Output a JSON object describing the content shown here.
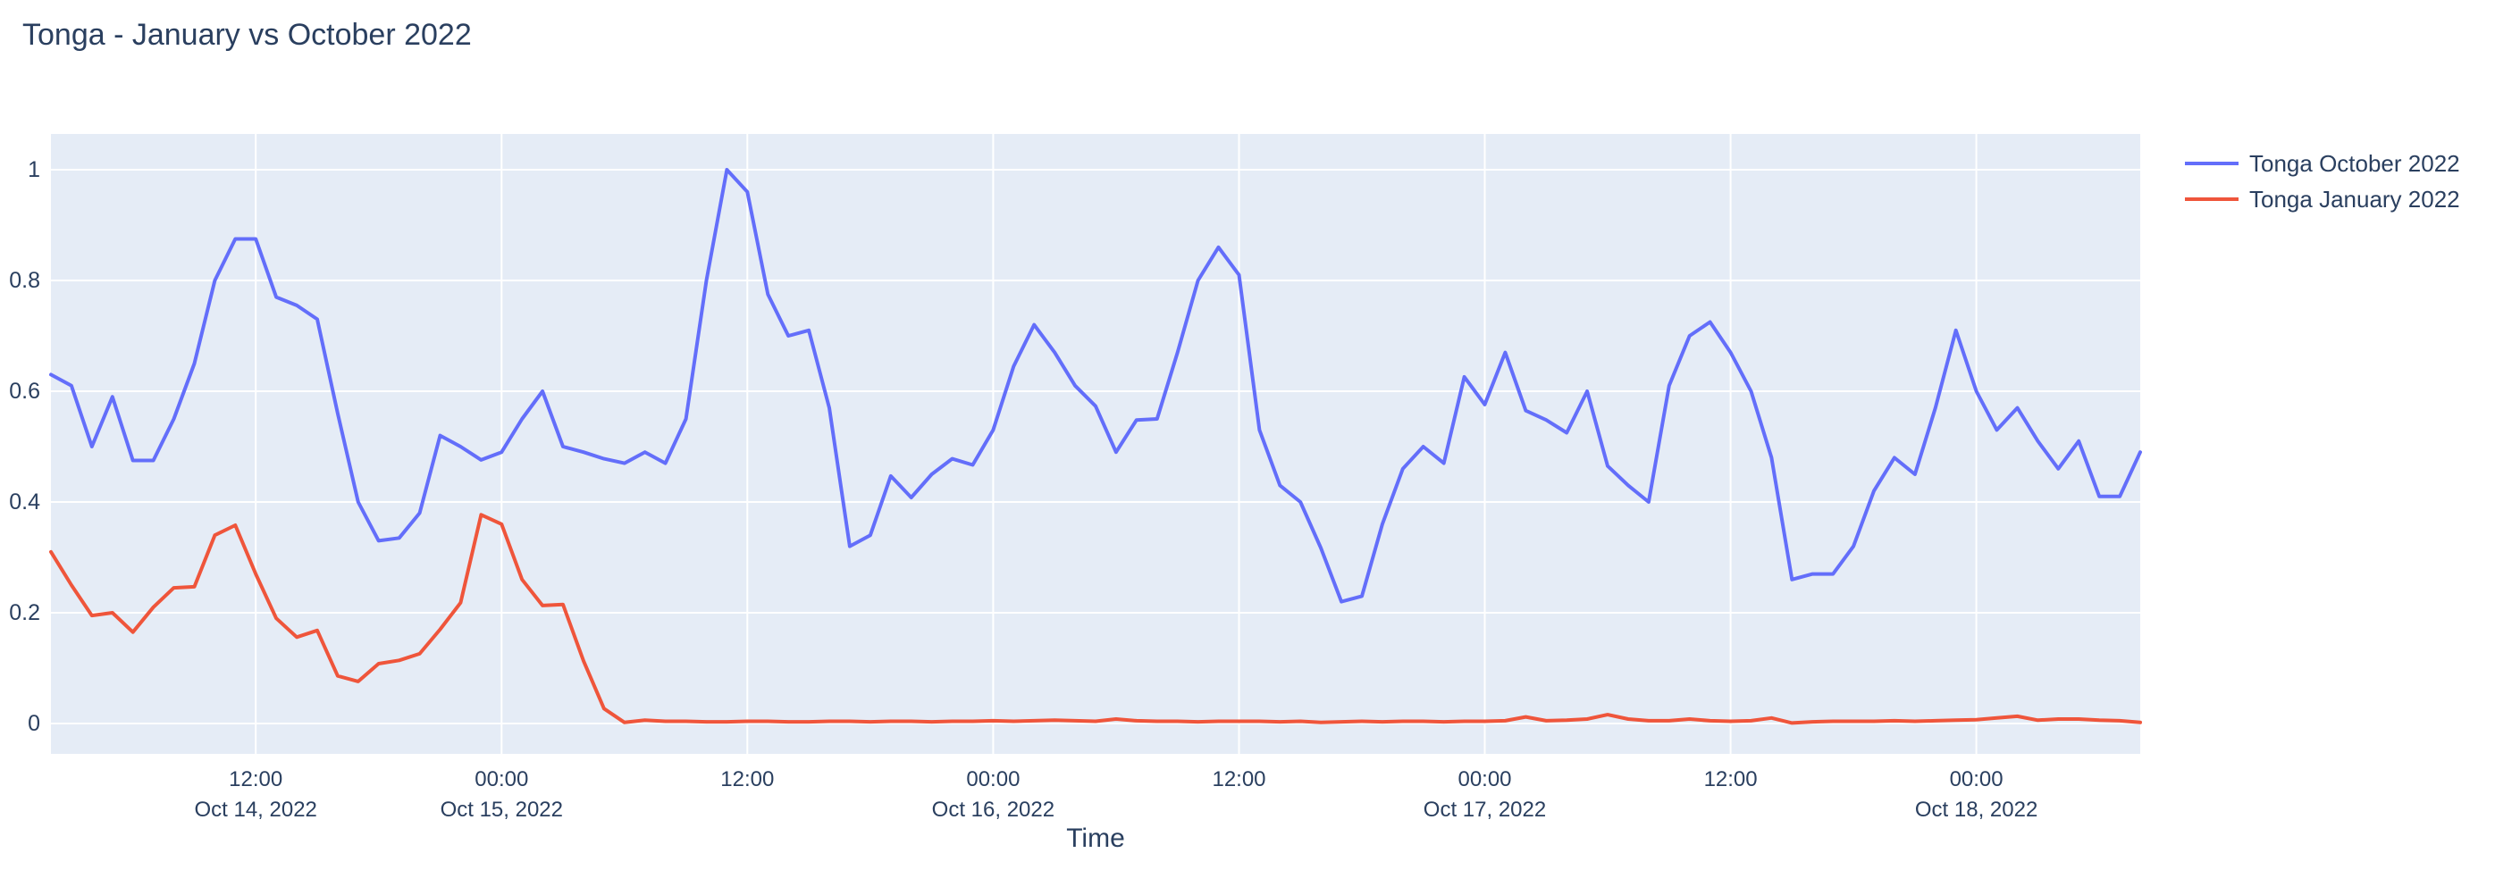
{
  "title": "Tonga - January vs October 2022",
  "colors": {
    "text": "#2a3f5f",
    "plot_background": "#E5ECF6",
    "grid": "#FFFFFF",
    "series_october": "#636EFA",
    "series_january": "#EF553B"
  },
  "legend": {
    "items": [
      {
        "label": "Tonga October 2022",
        "color": "#636EFA"
      },
      {
        "label": "Tonga January 2022",
        "color": "#EF553B"
      }
    ]
  },
  "chart_data": {
    "type": "line",
    "title": "Tonga - January vs October 2022",
    "xlabel": "Time",
    "ylabel": "",
    "ylim": [
      -0.055,
      1.065
    ],
    "grid": true,
    "legend_position": "right-top",
    "yticks": [
      {
        "value": 0,
        "label": "0"
      },
      {
        "value": 0.2,
        "label": "0.2"
      },
      {
        "value": 0.4,
        "label": "0.4"
      },
      {
        "value": 0.6,
        "label": "0.6"
      },
      {
        "value": 0.8,
        "label": "0.8"
      },
      {
        "value": 1,
        "label": "1"
      }
    ],
    "xticks": [
      {
        "index": 10,
        "lines": [
          "12:00",
          "Oct 14, 2022"
        ]
      },
      {
        "index": 22,
        "lines": [
          "00:00",
          "Oct 15, 2022"
        ]
      },
      {
        "index": 34,
        "lines": [
          "12:00"
        ]
      },
      {
        "index": 46,
        "lines": [
          "00:00",
          "Oct 16, 2022"
        ]
      },
      {
        "index": 58,
        "lines": [
          "12:00"
        ]
      },
      {
        "index": 70,
        "lines": [
          "00:00",
          "Oct 17, 2022"
        ]
      },
      {
        "index": 82,
        "lines": [
          "12:00"
        ]
      },
      {
        "index": 94,
        "lines": [
          "00:00",
          "Oct 18, 2022"
        ]
      }
    ],
    "x": [
      "2022-10-14 02:00",
      "2022-10-14 03:00",
      "2022-10-14 04:00",
      "2022-10-14 05:00",
      "2022-10-14 06:00",
      "2022-10-14 07:00",
      "2022-10-14 08:00",
      "2022-10-14 09:00",
      "2022-10-14 10:00",
      "2022-10-14 11:00",
      "2022-10-14 12:00",
      "2022-10-14 13:00",
      "2022-10-14 14:00",
      "2022-10-14 15:00",
      "2022-10-14 16:00",
      "2022-10-14 17:00",
      "2022-10-14 18:00",
      "2022-10-14 19:00",
      "2022-10-14 20:00",
      "2022-10-14 21:00",
      "2022-10-14 22:00",
      "2022-10-14 23:00",
      "2022-10-15 00:00",
      "2022-10-15 01:00",
      "2022-10-15 02:00",
      "2022-10-15 03:00",
      "2022-10-15 04:00",
      "2022-10-15 05:00",
      "2022-10-15 06:00",
      "2022-10-15 07:00",
      "2022-10-15 08:00",
      "2022-10-15 09:00",
      "2022-10-15 10:00",
      "2022-10-15 11:00",
      "2022-10-15 12:00",
      "2022-10-15 13:00",
      "2022-10-15 14:00",
      "2022-10-15 15:00",
      "2022-10-15 16:00",
      "2022-10-15 17:00",
      "2022-10-15 18:00",
      "2022-10-15 19:00",
      "2022-10-15 20:00",
      "2022-10-15 21:00",
      "2022-10-15 22:00",
      "2022-10-15 23:00",
      "2022-10-16 00:00",
      "2022-10-16 01:00",
      "2022-10-16 02:00",
      "2022-10-16 03:00",
      "2022-10-16 04:00",
      "2022-10-16 05:00",
      "2022-10-16 06:00",
      "2022-10-16 07:00",
      "2022-10-16 08:00",
      "2022-10-16 09:00",
      "2022-10-16 10:00",
      "2022-10-16 11:00",
      "2022-10-16 12:00",
      "2022-10-16 13:00",
      "2022-10-16 14:00",
      "2022-10-16 15:00",
      "2022-10-16 16:00",
      "2022-10-16 17:00",
      "2022-10-16 18:00",
      "2022-10-16 19:00",
      "2022-10-16 20:00",
      "2022-10-16 21:00",
      "2022-10-16 22:00",
      "2022-10-16 23:00",
      "2022-10-17 00:00",
      "2022-10-17 01:00",
      "2022-10-17 02:00",
      "2022-10-17 03:00",
      "2022-10-17 04:00",
      "2022-10-17 05:00",
      "2022-10-17 06:00",
      "2022-10-17 07:00",
      "2022-10-17 08:00",
      "2022-10-17 09:00",
      "2022-10-17 10:00",
      "2022-10-17 11:00",
      "2022-10-17 12:00",
      "2022-10-17 13:00",
      "2022-10-17 14:00",
      "2022-10-17 15:00",
      "2022-10-17 16:00",
      "2022-10-17 17:00",
      "2022-10-17 18:00",
      "2022-10-17 19:00",
      "2022-10-17 20:00",
      "2022-10-17 21:00",
      "2022-10-17 22:00",
      "2022-10-17 23:00",
      "2022-10-18 00:00",
      "2022-10-18 01:00",
      "2022-10-18 02:00",
      "2022-10-18 03:00",
      "2022-10-18 04:00",
      "2022-10-18 05:00",
      "2022-10-18 06:00",
      "2022-10-18 07:00",
      "2022-10-18 08:00"
    ],
    "series": [
      {
        "name": "Tonga October 2022",
        "color": "#636EFA",
        "values": [
          0.63,
          0.61,
          0.5,
          0.59,
          0.475,
          0.475,
          0.55,
          0.65,
          0.8,
          0.875,
          0.875,
          0.77,
          0.755,
          0.73,
          0.56,
          0.4,
          0.33,
          0.335,
          0.38,
          0.52,
          0.5,
          0.476,
          0.49,
          0.55,
          0.6,
          0.5,
          0.49,
          0.478,
          0.47,
          0.49,
          0.47,
          0.55,
          0.8,
          1.0,
          0.96,
          0.775,
          0.7,
          0.71,
          0.57,
          0.32,
          0.34,
          0.447,
          0.408,
          0.45,
          0.478,
          0.467,
          0.53,
          0.645,
          0.72,
          0.67,
          0.61,
          0.573,
          0.49,
          0.548,
          0.55,
          0.67,
          0.8,
          0.86,
          0.81,
          0.53,
          0.43,
          0.4,
          0.317,
          0.22,
          0.23,
          0.36,
          0.46,
          0.5,
          0.47,
          0.626,
          0.576,
          0.67,
          0.565,
          0.548,
          0.525,
          0.6,
          0.465,
          0.43,
          0.4,
          0.61,
          0.7,
          0.725,
          0.67,
          0.6,
          0.48,
          0.26,
          0.27,
          0.27,
          0.32,
          0.42,
          0.48,
          0.45,
          0.57,
          0.71,
          0.6,
          0.53,
          0.57,
          0.51,
          0.46,
          0.51,
          0.41,
          0.41,
          0.49
        ]
      },
      {
        "name": "Tonga January 2022",
        "color": "#EF553B",
        "values": [
          0.31,
          0.25,
          0.195,
          0.2,
          0.165,
          0.21,
          0.245,
          0.247,
          0.34,
          0.358,
          0.27,
          0.19,
          0.156,
          0.168,
          0.086,
          0.076,
          0.108,
          0.114,
          0.126,
          0.17,
          0.218,
          0.377,
          0.36,
          0.26,
          0.213,
          0.215,
          0.113,
          0.027,
          0.002,
          0.006,
          0.004,
          0.004,
          0.003,
          0.003,
          0.004,
          0.004,
          0.003,
          0.003,
          0.004,
          0.004,
          0.003,
          0.004,
          0.004,
          0.003,
          0.004,
          0.004,
          0.005,
          0.004,
          0.005,
          0.006,
          0.005,
          0.004,
          0.008,
          0.005,
          0.004,
          0.004,
          0.003,
          0.004,
          0.004,
          0.004,
          0.003,
          0.004,
          0.002,
          0.003,
          0.004,
          0.003,
          0.004,
          0.004,
          0.003,
          0.004,
          0.004,
          0.005,
          0.012,
          0.005,
          0.006,
          0.008,
          0.016,
          0.008,
          0.005,
          0.005,
          0.008,
          0.005,
          0.004,
          0.005,
          0.01,
          0.001,
          0.003,
          0.004,
          0.004,
          0.004,
          0.005,
          0.004,
          0.005,
          0.006,
          0.007,
          0.01,
          0.013,
          0.006,
          0.008,
          0.008,
          0.006,
          0.005,
          0.002
        ]
      }
    ]
  }
}
